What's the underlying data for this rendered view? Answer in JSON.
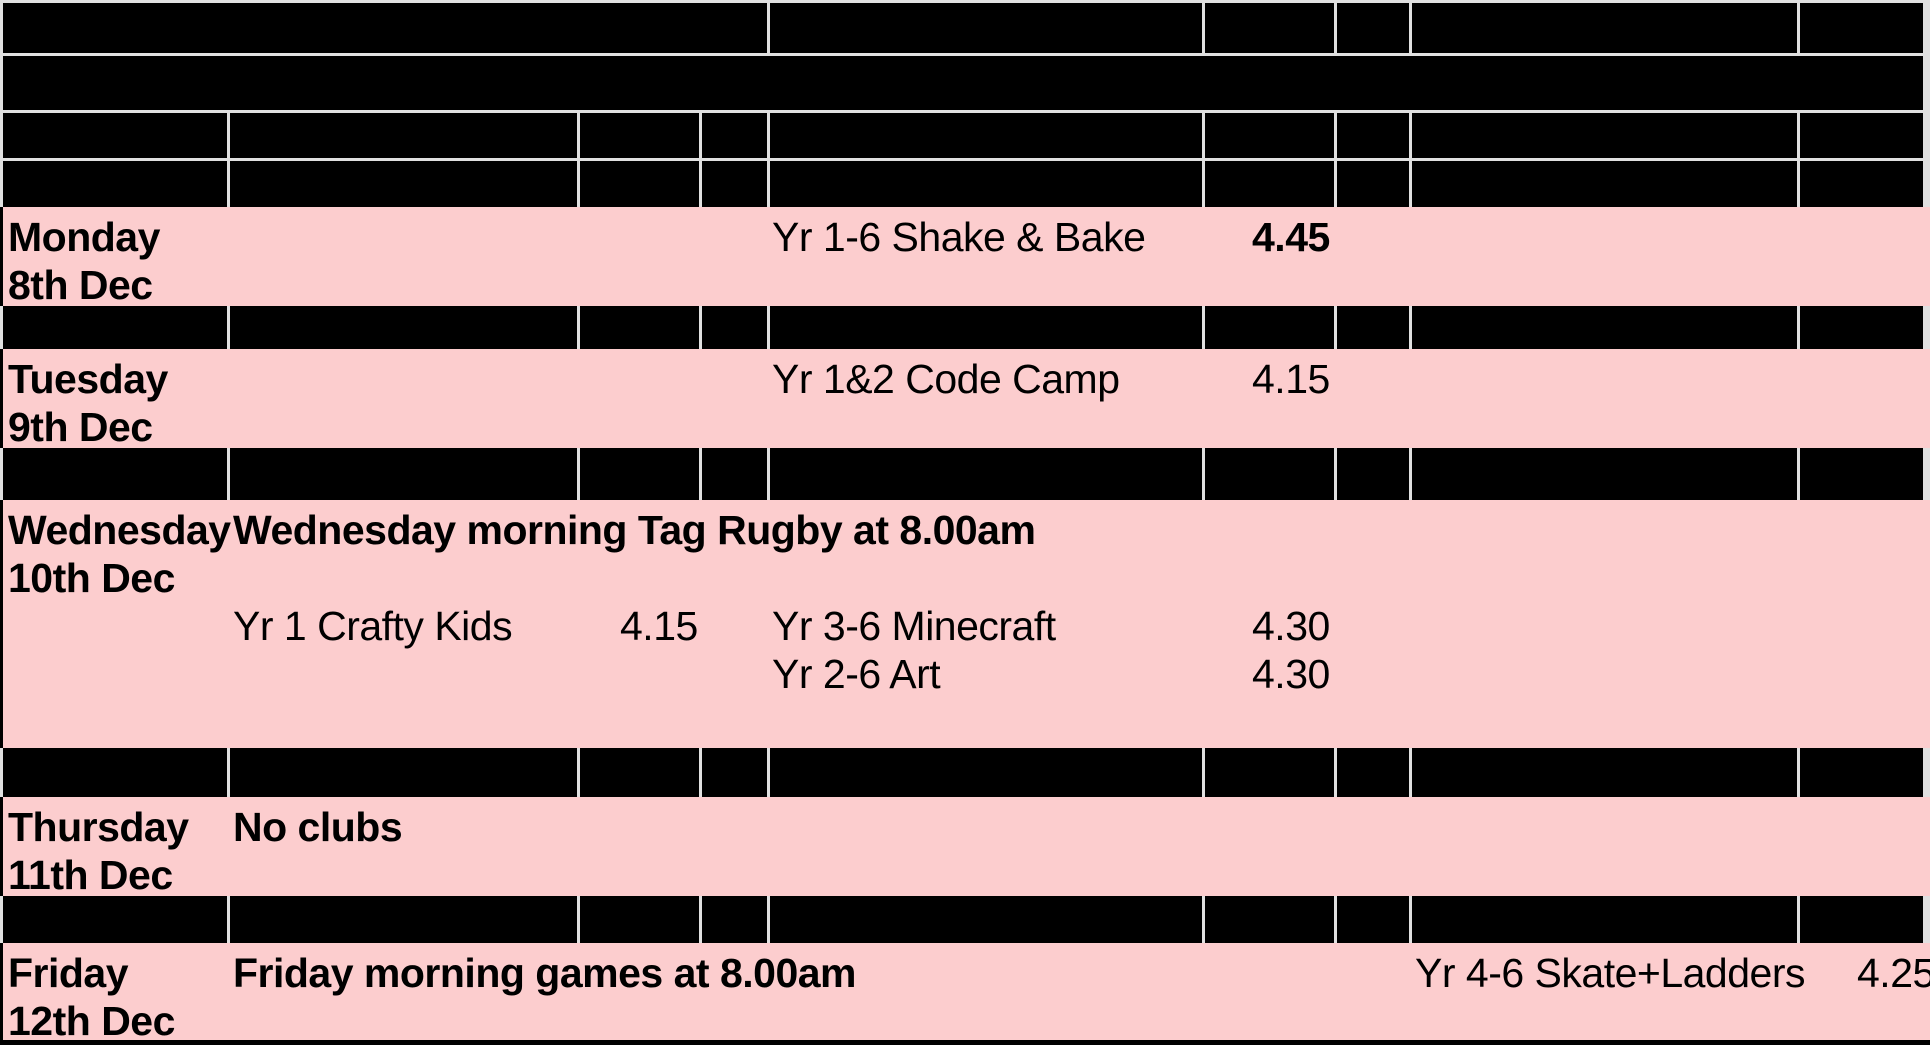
{
  "timetable": {
    "rows": {
      "monday": {
        "day": "Monday",
        "date": "8th Dec",
        "club2": "Yr 1-6 Shake & Bake",
        "time2": "4.45"
      },
      "tuesday": {
        "day": "Tuesday",
        "date": "9th Dec",
        "club2": "Yr 1&2 Code Camp",
        "time2": "4.15"
      },
      "wednesday": {
        "day": "Wednesday",
        "date": "10th Dec",
        "morning_note": "Wednesday morning Tag Rugby at 8.00am",
        "club1": "Yr 1 Crafty Kids",
        "time1": "4.15",
        "club2a": "Yr 3-6 Minecraft",
        "time2a": "4.30",
        "club2b": "Yr 2-6 Art",
        "time2b": "4.30"
      },
      "thursday": {
        "day": "Thursday",
        "date": "11th Dec",
        "note": "No clubs"
      },
      "friday": {
        "day": "Friday",
        "date": "12th Dec",
        "morning_note": "Friday morning games at 8.00am",
        "club3": "Yr 4-6 Skate+Ladders",
        "time3": "4.25"
      }
    }
  },
  "colors": {
    "row_pink": "#fccdce",
    "cell_black": "#000000",
    "gridline": "#e0e0e0",
    "text": "#000000"
  }
}
